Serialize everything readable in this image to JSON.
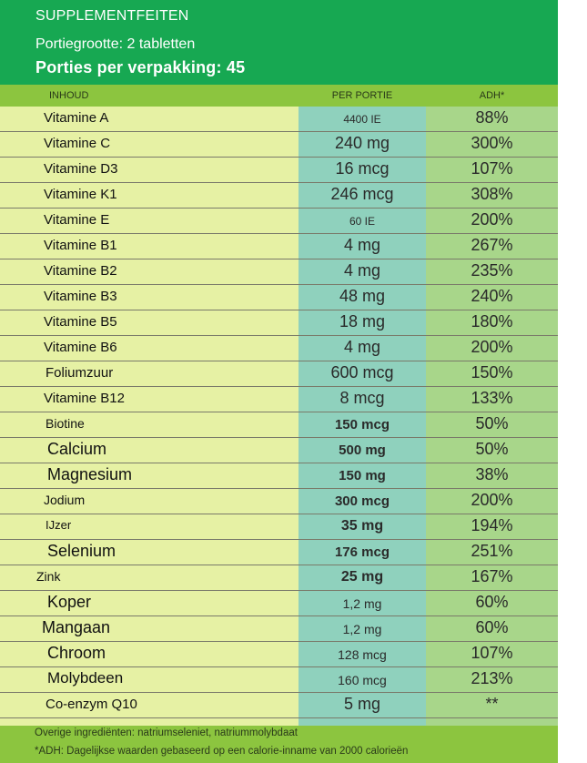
{
  "header": {
    "title": "SUPPLEMENTFEITEN",
    "serving_size": "Portiegrootte: 2 tabletten",
    "servings_per_container": "Porties per verpakking: 45"
  },
  "columns": {
    "content": "INHOUD",
    "per_serving": "PER PORTIE",
    "dv": "ADH*"
  },
  "rows": [
    {
      "name": "Vitamine A",
      "amount": "4400 IE",
      "dv": "88%"
    },
    {
      "name": "Vitamine C",
      "amount": "240 mg",
      "dv": "300%"
    },
    {
      "name": "Vitamine D3",
      "amount": "16 mcg",
      "dv": "107%"
    },
    {
      "name": "Vitamine K1",
      "amount": "246 mcg",
      "dv": "308%"
    },
    {
      "name": "Vitamine E",
      "amount": "60 IE",
      "dv": "200%"
    },
    {
      "name": "Vitamine B1",
      "amount": "4 mg",
      "dv": "267%"
    },
    {
      "name": "Vitamine B2",
      "amount": "4 mg",
      "dv": "235%"
    },
    {
      "name": "Vitamine B3",
      "amount": "48 mg",
      "dv": "240%"
    },
    {
      "name": "Vitamine B5",
      "amount": "18 mg",
      "dv": "180%"
    },
    {
      "name": "Vitamine B6",
      "amount": "4 mg",
      "dv": "200%"
    },
    {
      "name": "Foliumzuur",
      "amount": "600 mcg",
      "dv": "150%"
    },
    {
      "name": "Vitamine B12",
      "amount": "8 mcg",
      "dv": "133%"
    },
    {
      "name": "Biotine",
      "amount": "150 mcg",
      "dv": "50%"
    },
    {
      "name": "Calcium",
      "amount": "500 mg",
      "dv": "50%"
    },
    {
      "name": "Magnesium",
      "amount": "150 mg",
      "dv": "38%"
    },
    {
      "name": "Jodium",
      "amount": "300 mcg",
      "dv": "200%"
    },
    {
      "name": "IJzer",
      "amount": "35 mg",
      "dv": "194%"
    },
    {
      "name": "Selenium",
      "amount": "176 mcg",
      "dv": "251%"
    },
    {
      "name": "Zink",
      "amount": "25 mg",
      "dv": "167%"
    },
    {
      "name": "Koper",
      "amount": "1,2 mg",
      "dv": "60%"
    },
    {
      "name": "Mangaan",
      "amount": "1,2 mg",
      "dv": "60%"
    },
    {
      "name": "Chroom",
      "amount": "128 mcg",
      "dv": "107%"
    },
    {
      "name": "Molybdeen",
      "amount": "160 mcg",
      "dv": "213%"
    },
    {
      "name": "Co-enzym Q10",
      "amount": "5 mg",
      "dv": "**"
    }
  ],
  "footer": {
    "other_ingredients": "Overige ingrediënten: natriumseleniet, natriummolybdaat",
    "dv_note": "*ADH: Dagelijkse waarden gebaseerd op een calorie-inname van 2000 calorieën"
  },
  "colors": {
    "header_green": "#17a852",
    "band_green": "#8cc53f",
    "row_background": "#e6f1a4",
    "per_serving_column": "#8fd1bd",
    "dv_column": "#a8d68a"
  }
}
